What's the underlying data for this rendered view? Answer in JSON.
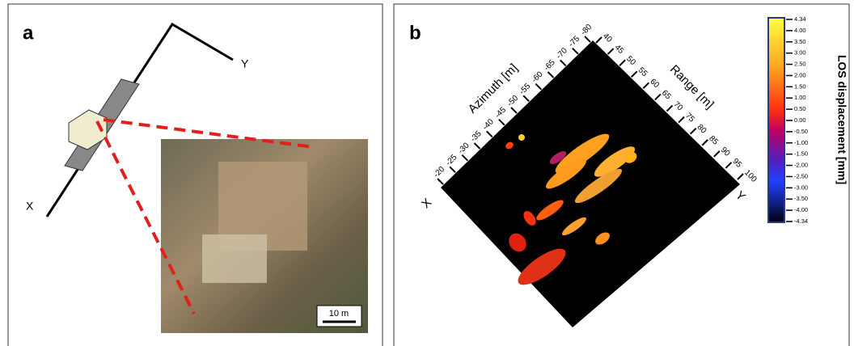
{
  "panel_a": {
    "label": "a",
    "axis_x": "X",
    "axis_y": "Y",
    "scale_bar": "10 m"
  },
  "panel_b": {
    "label": "b",
    "azimuth": {
      "title": "Azimuth [m]",
      "ticks": [
        "-20",
        "-25",
        "-30",
        "-35",
        "-40",
        "-45",
        "-50",
        "-55",
        "-60",
        "-65",
        "-70",
        "-75",
        "-80"
      ]
    },
    "range": {
      "title": "Range [m]",
      "ticks": [
        "40",
        "45",
        "50",
        "55",
        "60",
        "65",
        "70",
        "75",
        "80",
        "85",
        "90",
        "95",
        "100"
      ]
    },
    "corner_x": "X",
    "corner_y": "Y",
    "colorbar": {
      "title": "LOS displacement [mm]",
      "ticks": [
        "4.34",
        "4.00",
        "3.50",
        "3.00",
        "2.50",
        "2.00",
        "1.50",
        "1.00",
        "0.50",
        "0.00",
        "-0.50",
        "-1.00",
        "-1.50",
        "-2.00",
        "-2.50",
        "-3.00",
        "-3.50",
        "-4.00",
        "-4.34"
      ]
    }
  }
}
